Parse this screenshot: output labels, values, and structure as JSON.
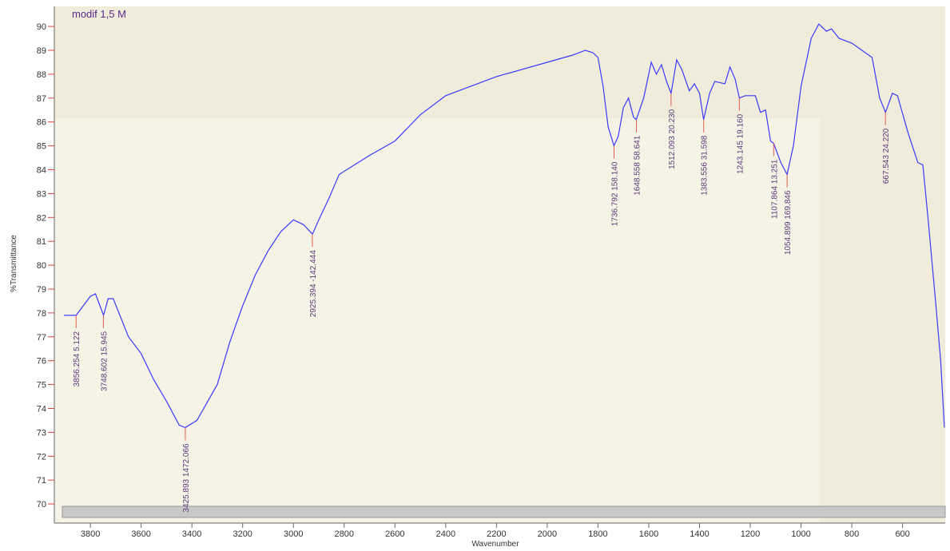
{
  "chart_data": {
    "type": "line",
    "title": "modif 1,5 M",
    "xlabel": "Wavenumber",
    "ylabel": "%Transmittance",
    "xlim": [
      3942,
      432
    ],
    "ylim": [
      69.2,
      90.84
    ],
    "xticks": [
      3800,
      3600,
      3400,
      3200,
      3000,
      2800,
      2600,
      2400,
      2200,
      2000,
      1800,
      1600,
      1400,
      1200,
      1000,
      800,
      600
    ],
    "yticks": [
      70,
      71,
      72,
      73,
      74,
      75,
      76,
      77,
      78,
      79,
      80,
      81,
      82,
      83,
      84,
      85,
      86,
      87,
      88,
      89,
      90
    ],
    "x": [
      3904,
      3856,
      3800,
      3780,
      3748,
      3730,
      3710,
      3650,
      3600,
      3550,
      3500,
      3450,
      3426,
      3380,
      3300,
      3250,
      3200,
      3150,
      3100,
      3050,
      3000,
      2960,
      2925,
      2900,
      2860,
      2820,
      2700,
      2600,
      2500,
      2400,
      2200,
      2000,
      1900,
      1850,
      1820,
      1800,
      1780,
      1760,
      1737,
      1720,
      1700,
      1680,
      1660,
      1649,
      1620,
      1590,
      1570,
      1550,
      1530,
      1512,
      1490,
      1470,
      1440,
      1420,
      1400,
      1384,
      1360,
      1340,
      1300,
      1280,
      1260,
      1243,
      1220,
      1180,
      1160,
      1140,
      1120,
      1108,
      1080,
      1055,
      1030,
      1000,
      960,
      930,
      900,
      880,
      850,
      800,
      760,
      720,
      690,
      667,
      640,
      620,
      580,
      540,
      520,
      500,
      470,
      450,
      435
    ],
    "series": [
      {
        "name": "modif 1,5 M",
        "color": "#3a3aff",
        "values": [
          77.9,
          77.9,
          78.7,
          78.8,
          77.9,
          78.6,
          78.6,
          77.0,
          76.3,
          75.2,
          74.3,
          73.3,
          73.2,
          73.5,
          75.0,
          76.8,
          78.3,
          79.6,
          80.6,
          81.4,
          81.9,
          81.7,
          81.3,
          81.9,
          82.8,
          83.8,
          84.6,
          85.2,
          86.3,
          87.1,
          87.9,
          88.5,
          88.8,
          89.0,
          88.9,
          88.7,
          87.5,
          85.8,
          85.0,
          85.4,
          86.6,
          87.0,
          86.2,
          86.1,
          87.0,
          88.5,
          88.0,
          88.4,
          87.7,
          87.2,
          88.6,
          88.2,
          87.3,
          87.6,
          87.2,
          86.1,
          87.2,
          87.7,
          87.6,
          88.3,
          87.8,
          87.0,
          87.1,
          87.1,
          86.4,
          86.5,
          85.2,
          85.1,
          84.3,
          83.8,
          85.0,
          87.5,
          89.5,
          90.1,
          89.8,
          89.9,
          89.5,
          89.3,
          89.0,
          88.7,
          87.0,
          86.4,
          87.2,
          87.1,
          85.6,
          84.3,
          84.2,
          82.0,
          78.5,
          76.0,
          73.2
        ]
      }
    ],
    "peaks": [
      {
        "x": 3856.254,
        "y": 77.9,
        "label": "3856.254  5.122"
      },
      {
        "x": 3748.602,
        "y": 77.9,
        "label": "3748.602  15.945"
      },
      {
        "x": 3425.893,
        "y": 73.2,
        "label": "3425.893  1472.066"
      },
      {
        "x": 2925.394,
        "y": 81.3,
        "label": "2925.394  -142.444"
      },
      {
        "x": 1736.792,
        "y": 85.0,
        "label": "1736.792  158.140"
      },
      {
        "x": 1648.558,
        "y": 86.1,
        "label": "1648.558  58.641"
      },
      {
        "x": 1512.093,
        "y": 87.2,
        "label": "1512.093  20.230"
      },
      {
        "x": 1383.556,
        "y": 86.1,
        "label": "1383.556  31.598"
      },
      {
        "x": 1243.145,
        "y": 87.0,
        "label": "1243.145  19.160"
      },
      {
        "x": 1107.864,
        "y": 85.1,
        "label": "1107.864  13.251"
      },
      {
        "x": 1054.899,
        "y": 83.8,
        "label": "1054.899  169.846"
      },
      {
        "x": 667.543,
        "y": 86.4,
        "label": "667.543  24.220"
      }
    ],
    "grid": false
  }
}
